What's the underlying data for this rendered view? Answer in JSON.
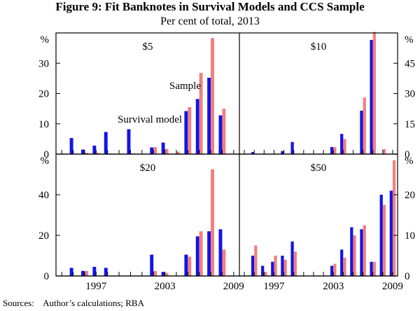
{
  "title": "Figure 9: Fit Banknotes in Survival Models and CCS Sample",
  "subtitle": "Per cent of total, 2013",
  "sources_label": "Sources:",
  "sources_text": "Author’s calculations; RBA",
  "colors": {
    "survival": "#1414e6",
    "sample": "#f08080",
    "axis": "#000000"
  },
  "legend": {
    "survival": "Survival model",
    "sample": "Sample"
  },
  "chart_data": {
    "type": "bar",
    "x": [
      1994,
      1995,
      1996,
      1997,
      1998,
      1999,
      2000,
      2001,
      2002,
      2003,
      2004,
      2005,
      2006,
      2007,
      2008,
      2009
    ],
    "x_tick_labels": [
      "1997",
      "2003",
      "2009"
    ],
    "panels": [
      {
        "name": "$5",
        "unit": "%",
        "ylim": [
          0,
          40
        ],
        "y_ticks": [
          0,
          10,
          20,
          30
        ],
        "y_ticks_side": "left",
        "series": [
          {
            "name": "Survival model",
            "values": [
              0,
              5.3,
              1.5,
              2.8,
              7.3,
              0,
              8.2,
              0,
              2.2,
              3.8,
              0,
              14.2,
              18.2,
              25.2,
              12.8,
              0
            ]
          },
          {
            "name": "Sample",
            "values": [
              0,
              0,
              0.4,
              0.4,
              0.2,
              0,
              0.2,
              0,
              2.3,
              1.7,
              0.8,
              15.5,
              26.8,
              38.3,
              15.0,
              0
            ]
          }
        ]
      },
      {
        "name": "$10",
        "unit": "%",
        "ylim": [
          0,
          60
        ],
        "y_ticks": [
          0,
          15,
          30,
          45
        ],
        "y_ticks_side": "right",
        "series": [
          {
            "name": "Survival model",
            "values": [
              0,
              1.0,
              0,
              0,
              1.5,
              6.0,
              0,
              0,
              0,
              3.5,
              10.0,
              0,
              21.5,
              56.5,
              0,
              0
            ]
          },
          {
            "name": "Sample",
            "values": [
              0,
              0,
              0,
              0,
              0,
              0,
              0,
              0,
              0,
              3.5,
              7.5,
              0,
              28.0,
              60.5,
              2.5,
              0
            ]
          }
        ]
      },
      {
        "name": "$20",
        "unit": "%",
        "ylim": [
          0,
          60
        ],
        "y_ticks": [
          0,
          20,
          40
        ],
        "y_ticks_side": "left",
        "series": [
          {
            "name": "Survival model",
            "values": [
              0,
              4.0,
              2.5,
              4.5,
              4.0,
              0,
              0,
              0,
              10.5,
              2.0,
              0,
              10.5,
              19.5,
              22.0,
              23.0,
              0
            ]
          },
          {
            "name": "Sample",
            "values": [
              0,
              0,
              2.5,
              0,
              0,
              0,
              0,
              0,
              2.5,
              1.5,
              0,
              9.5,
              22.0,
              52.5,
              13.0,
              0
            ]
          }
        ]
      },
      {
        "name": "$50",
        "unit": "%",
        "ylim": [
          0,
          30
        ],
        "y_ticks": [
          0,
          10,
          20
        ],
        "y_ticks_side": "right",
        "series": [
          {
            "name": "Survival model",
            "values": [
              0,
              5.0,
              2.5,
              3.5,
              5.0,
              8.5,
              0,
              0,
              0,
              2.5,
              6.5,
              12.0,
              11.5,
              3.5,
              20.0,
              21.0
            ]
          },
          {
            "name": "Sample",
            "values": [
              0,
              7.5,
              1.0,
              5.0,
              4.0,
              6.0,
              0,
              0,
              0,
              3.0,
              4.5,
              10.0,
              12.5,
              3.5,
              17.5,
              28.5
            ]
          }
        ]
      }
    ]
  }
}
